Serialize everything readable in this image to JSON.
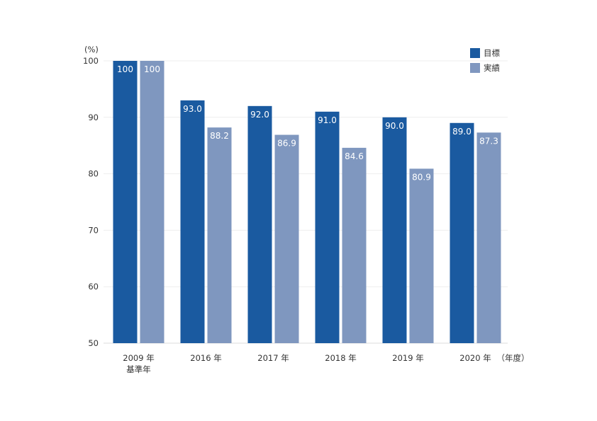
{
  "chart_data": {
    "type": "bar",
    "unit_label": "(%)",
    "x_suffix": "（年度）",
    "categories": [
      {
        "label": "2009 年",
        "sublabel": "基準年"
      },
      {
        "label": "2016 年",
        "sublabel": ""
      },
      {
        "label": "2017 年",
        "sublabel": ""
      },
      {
        "label": "2018 年",
        "sublabel": ""
      },
      {
        "label": "2019 年",
        "sublabel": ""
      },
      {
        "label": "2020 年",
        "sublabel": ""
      }
    ],
    "series": [
      {
        "name": "目標",
        "color": "#1a5aa0",
        "values": [
          100,
          93.0,
          92.0,
          91.0,
          90.0,
          89.0
        ],
        "labels": [
          "100",
          "93.0",
          "92.0",
          "91.0",
          "90.0",
          "89.0"
        ]
      },
      {
        "name": "実績",
        "color": "#7f97bf",
        "values": [
          100,
          88.2,
          86.9,
          84.6,
          80.9,
          87.3
        ],
        "labels": [
          "100",
          "88.2",
          "86.9",
          "84.6",
          "80.9",
          "87.3"
        ]
      }
    ],
    "ylim": [
      50,
      100
    ],
    "yticks": [
      50,
      60,
      70,
      80,
      90,
      100
    ],
    "grid": true,
    "legend_position": "top-right"
  }
}
